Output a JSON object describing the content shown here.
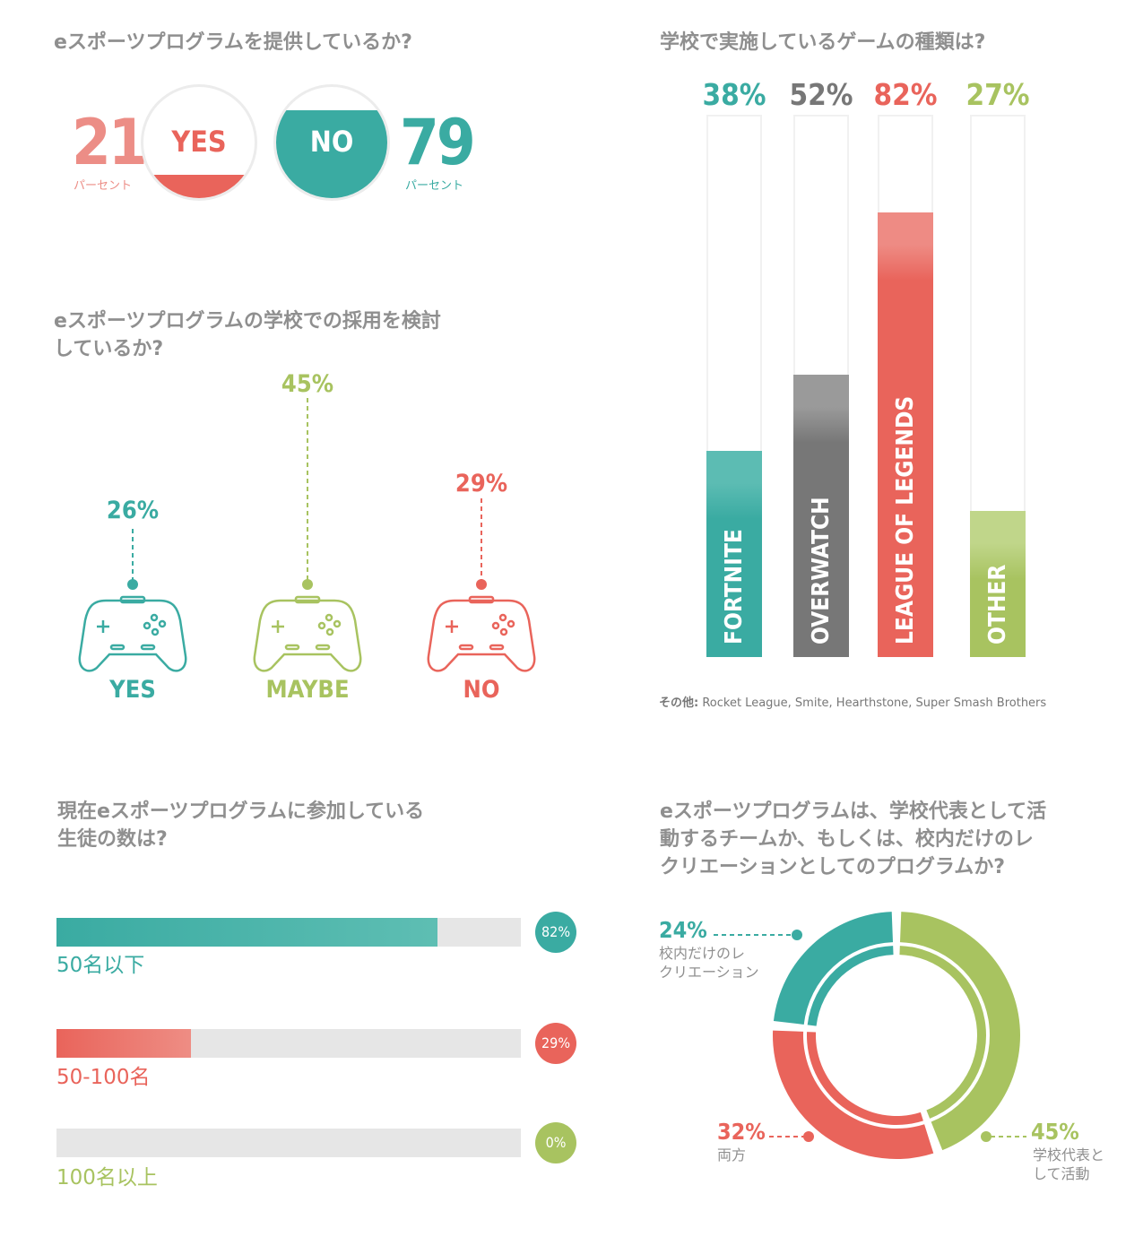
{
  "colors": {
    "teal": "#3aaba2",
    "red": "#e9645b",
    "gray": "#777777",
    "green": "#a8c360",
    "lightgray": "#e6e6e6"
  },
  "offer": {
    "question": "eスポーツプログラムを提供しているか?",
    "yes_value": "21",
    "yes_unit": "パーセント",
    "yes_label": "YES",
    "no_value": "79",
    "no_unit": "パーセント",
    "no_label": "NO"
  },
  "consider": {
    "question_line1": "eスポーツプログラムの学校での採用を検討",
    "question_line2": "しているか?",
    "items": [
      {
        "label": "YES",
        "value": "26%",
        "color_name": "teal",
        "icon": "gamepad-icon"
      },
      {
        "label": "MAYBE",
        "value": "45%",
        "color_name": "green",
        "icon": "gamepad-icon"
      },
      {
        "label": "NO",
        "value": "29%",
        "color_name": "red",
        "icon": "gamepad-icon"
      }
    ]
  },
  "games": {
    "question": "学校で実施しているゲームの種類は?",
    "other_note_label": "その他:",
    "other_note_text": " Rocket League, Smite, Hearthstone, Super Smash Brothers"
  },
  "students": {
    "question_line1": "現在eスポーツプログラムに参加している",
    "question_line2": "生徒の数は?",
    "items": [
      {
        "label": "50名以下",
        "value": 82,
        "badge": "82%"
      },
      {
        "label": "50-100名",
        "value": 29,
        "badge": "29%"
      },
      {
        "label": "100名以上",
        "value": 0,
        "badge": "0%"
      }
    ]
  },
  "team": {
    "question_line1": "eスポーツプログラムは、学校代表として活",
    "question_line2": "動するチームか、もしくは、校内だけのレ",
    "question_line3": "クリエーションとしてのプログラムか?",
    "rec_value": "24%",
    "rec_label_line1": "校内だけのレ",
    "rec_label_line2": "クリエーション",
    "both_value": "32%",
    "both_label": "両方",
    "rep_value": "45%",
    "rep_label_line1": "学校代表と",
    "rep_label_line2": "して活動"
  },
  "chart_data": [
    {
      "type": "pie",
      "title": "eスポーツプログラムを提供しているか?",
      "categories": [
        "YES",
        "NO"
      ],
      "values": [
        21,
        79
      ]
    },
    {
      "type": "bar",
      "title": "eスポーツプログラムの学校での採用を検討しているか?",
      "categories": [
        "YES",
        "MAYBE",
        "NO"
      ],
      "values": [
        26,
        45,
        29
      ]
    },
    {
      "type": "bar",
      "title": "学校で実施しているゲームの種類は?",
      "categories": [
        "FORTNITE",
        "OVERWATCH",
        "LEAGUE OF LEGENDS",
        "OTHER"
      ],
      "values": [
        38,
        52,
        82,
        27
      ],
      "value_labels": [
        "38%",
        "52%",
        "82%",
        "27%"
      ],
      "ylim": [
        0,
        100
      ]
    },
    {
      "type": "bar",
      "title": "現在eスポーツプログラムに参加している生徒の数は?",
      "categories": [
        "50名以下",
        "50-100名",
        "100名以上"
      ],
      "values": [
        82,
        29,
        0
      ],
      "ylim": [
        0,
        100
      ]
    },
    {
      "type": "pie",
      "title": "eスポーツプログラムは、学校代表として活動するチームか、もしくは、校内だけのレクリエーションとしてのプログラムか?",
      "categories": [
        "校内だけのレクリエーション",
        "両方",
        "学校代表として活動"
      ],
      "values": [
        24,
        32,
        45
      ]
    }
  ]
}
